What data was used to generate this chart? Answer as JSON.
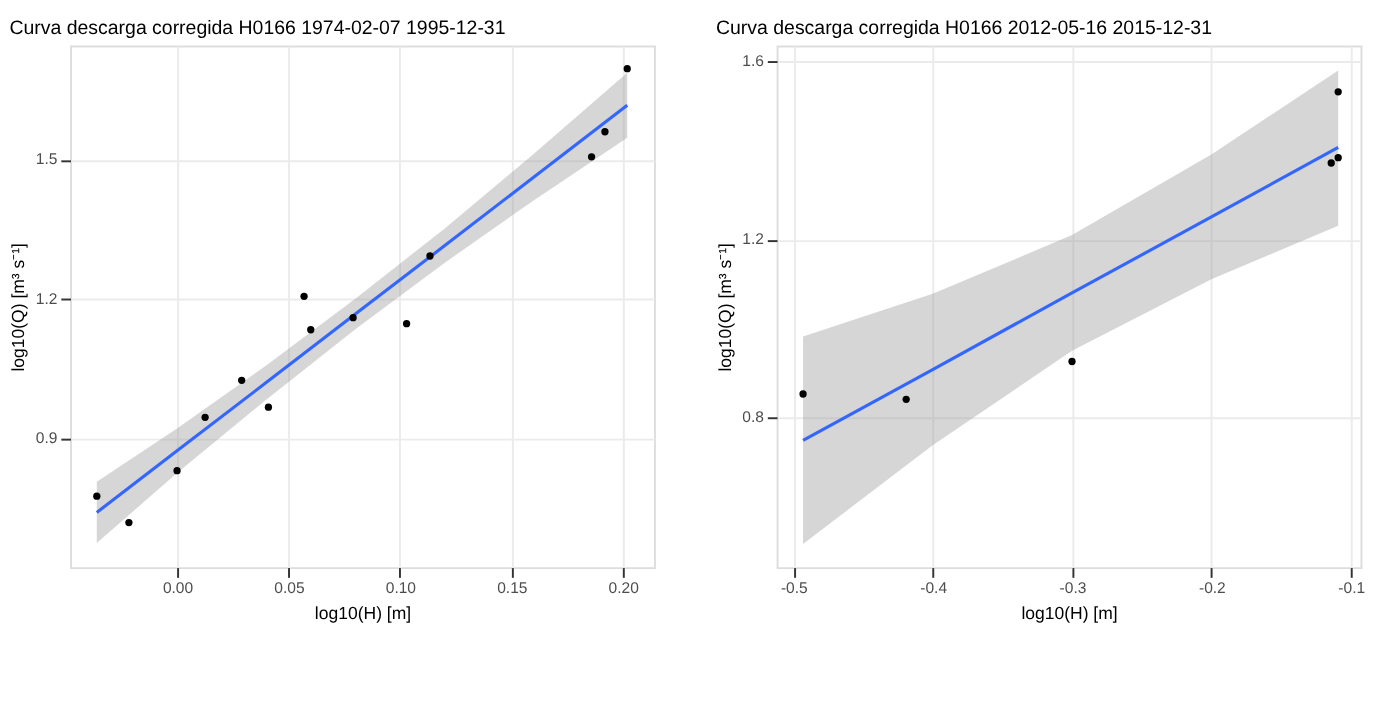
{
  "chart_data": [
    {
      "type": "scatter",
      "title": "Curva descarga corregida H0166 1974-02-07 1995-12-31",
      "xlabel": "log10(H) [m]",
      "ylabel": "log10(Q) [m³ s⁻¹]",
      "xlim": [
        -0.048,
        0.214
      ],
      "ylim": [
        0.621,
        1.746
      ],
      "xticks": [
        {
          "value": 0,
          "label": "0.00"
        },
        {
          "value": 0.05,
          "label": "0.05"
        },
        {
          "value": 0.1,
          "label": "0.10"
        },
        {
          "value": 0.15,
          "label": "0.15"
        },
        {
          "value": 0.2,
          "label": "0.20"
        }
      ],
      "yticks": [
        0.9,
        1.2,
        1.5
      ],
      "grid": true,
      "series": [
        {
          "type": "scatter",
          "color": "#000000",
          "marker": "circle",
          "x": [
            -0.036,
            -0.0216,
            0.0,
            0.0126,
            0.029,
            0.041,
            0.057,
            0.06,
            0.079,
            0.103,
            0.1135,
            0.186,
            0.192,
            0.202
          ],
          "values": [
            0.774,
            0.717,
            0.829,
            0.944,
            1.024,
            0.966,
            1.205,
            1.133,
            1.159,
            1.146,
            1.292,
            1.506,
            1.56,
            1.696
          ]
        },
        {
          "type": "line",
          "color": "#3366ff",
          "x": [
            -0.036,
            0.0,
            0.04,
            0.08,
            0.12,
            0.16,
            0.202
          ],
          "values": [
            0.739,
            0.872,
            1.019,
            1.167,
            1.314,
            1.462,
            1.617
          ],
          "lower": [
            0.673,
            0.824,
            0.982,
            1.134,
            1.277,
            1.412,
            1.547
          ],
          "upper": [
            0.805,
            0.92,
            1.056,
            1.2,
            1.351,
            1.512,
            1.687
          ]
        }
      ]
    },
    {
      "type": "scatter",
      "title": "Curva descarga corregida H0166 2012-05-16 2015-12-31",
      "xlabel": "log10(H) [m]",
      "ylabel": "log10(Q) [m³ s⁻¹]",
      "xlim": [
        -0.512,
        -0.093
      ],
      "ylim": [
        0.464,
        1.636
      ],
      "xticks": [
        -0.5,
        -0.4,
        -0.3,
        -0.2,
        -0.1
      ],
      "yticks": [
        0.8,
        1.2,
        1.6
      ],
      "grid": true,
      "series": [
        {
          "type": "scatter",
          "color": "#000000",
          "marker": "circle",
          "x": [
            -0.493,
            -0.419,
            -0.3,
            -0.114,
            -0.109,
            -0.109
          ],
          "values": [
            0.853,
            0.841,
            0.926,
            1.372,
            1.384,
            1.532
          ]
        },
        {
          "type": "line",
          "color": "#3366ff",
          "x": [
            -0.493,
            -0.4,
            -0.3,
            -0.2,
            -0.109
          ],
          "values": [
            0.749,
            0.908,
            1.08,
            1.251,
            1.407
          ],
          "lower": [
            0.516,
            0.738,
            0.95,
            1.111,
            1.231
          ],
          "upper": [
            0.982,
            1.078,
            1.21,
            1.391,
            1.58
          ]
        }
      ]
    }
  ]
}
